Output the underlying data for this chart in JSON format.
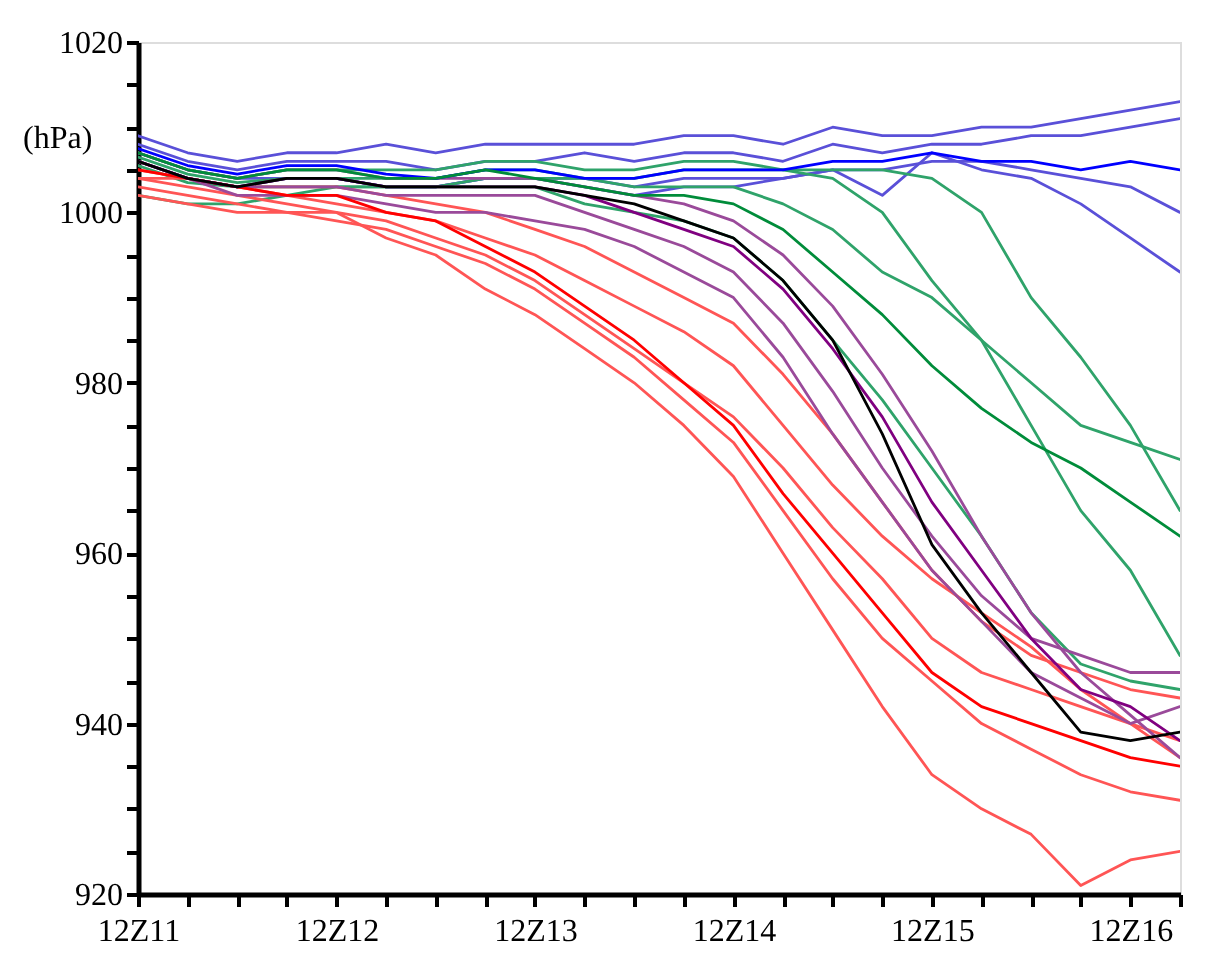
{
  "chart_data": {
    "type": "line",
    "ylabel": "(hPa)",
    "grid": false,
    "marker": "none",
    "line_style": "solid",
    "categories": [
      "12Z11",
      null,
      null,
      null,
      "12Z12",
      null,
      null,
      null,
      "12Z13",
      null,
      null,
      null,
      "12Z14",
      null,
      null,
      null,
      "12Z15",
      null,
      null,
      null,
      "12Z16",
      null
    ],
    "ylim": [
      920,
      1020
    ],
    "yticks": [
      920,
      {
        "value": 925,
        "label": null
      },
      {
        "value": 930,
        "label": null
      },
      {
        "value": 935,
        "label": null
      },
      940,
      {
        "value": 945,
        "label": null
      },
      {
        "value": 950,
        "label": null
      },
      {
        "value": 955,
        "label": null
      },
      960,
      {
        "value": 965,
        "label": null
      },
      {
        "value": 970,
        "label": null
      },
      {
        "value": 975,
        "label": null
      },
      980,
      {
        "value": 985,
        "label": null
      },
      {
        "value": 990,
        "label": null
      },
      {
        "value": 995,
        "label": null
      },
      1000,
      {
        "value": 1005,
        "label": null
      },
      {
        "value": 1010,
        "label": null
      },
      {
        "value": 1015,
        "label": null
      },
      1020
    ],
    "series": [
      {
        "color": "#5a50d8",
        "values": [
          1009,
          1007,
          1006,
          1007,
          1007,
          1008,
          1007,
          1008,
          1008,
          1008,
          1008,
          1009,
          1009,
          1008,
          1010,
          1009,
          1009,
          1010,
          1010,
          1011,
          1012,
          1013
        ]
      },
      {
        "color": "#5a50d8",
        "values": [
          1008,
          1006,
          1005,
          1006,
          1006,
          1006,
          1005,
          1006,
          1006,
          1007,
          1006,
          1007,
          1007,
          1006,
          1008,
          1007,
          1008,
          1008,
          1009,
          1009,
          1010,
          1011
        ]
      },
      {
        "color": "#5a50d8",
        "values": [
          1006,
          1004,
          1003,
          1004,
          1004,
          1003,
          1003,
          1004,
          1004,
          1003,
          1002,
          1003,
          1003,
          1004,
          1005,
          1002,
          1007,
          1005,
          1004,
          1001,
          997,
          993
        ]
      },
      {
        "color": "#5a50d8",
        "values": [
          1007,
          1005,
          1004,
          1004,
          1004,
          1003,
          1003,
          1004,
          1004,
          1004,
          1003,
          1004,
          1004,
          1004,
          1005,
          1005,
          1006,
          1006,
          1005,
          1004,
          1003,
          1000
        ]
      },
      {
        "color": "#2fa36a",
        "values": [
          1007,
          1005,
          1004,
          1005,
          1005,
          1005,
          1005,
          1006,
          1006,
          1005,
          1005,
          1006,
          1006,
          1005,
          1004,
          1000,
          992,
          985,
          975,
          965,
          958,
          948
        ]
      },
      {
        "color": "#2fa36a",
        "values": [
          1006.5,
          1004.5,
          1003.5,
          1004,
          1004,
          1004,
          1004,
          1005,
          1005,
          1004,
          1003,
          1003,
          1003,
          1001,
          998,
          993,
          990,
          985,
          980,
          975,
          973,
          971
        ]
      },
      {
        "color": "#2fa36a",
        "values": [
          1005.5,
          1003.5,
          1003,
          1003,
          1003,
          1003,
          1003,
          1003,
          1003,
          1001,
          1000,
          999,
          997,
          992,
          985,
          978,
          970,
          962,
          953,
          947,
          945,
          944
        ]
      },
      {
        "color": "#2fa36a",
        "values": [
          1002,
          1001,
          1001,
          1002,
          1003,
          1003,
          1003,
          1004,
          1004,
          1004,
          1004,
          1005,
          1005,
          1005,
          1005,
          1005,
          1004,
          1000,
          990,
          983,
          975,
          965
        ]
      },
      {
        "color": "#ff5555",
        "values": [
          1004,
          1003,
          1002,
          1001,
          1000,
          997,
          995,
          991,
          988,
          984,
          980,
          975,
          969,
          960,
          951,
          942,
          934,
          930,
          927,
          921,
          924,
          925
        ]
      },
      {
        "color": "#ff5555",
        "values": [
          1003,
          1002,
          1001,
          1000,
          1000,
          999,
          997,
          995,
          992,
          988,
          984,
          980,
          976,
          970,
          963,
          957,
          950,
          946,
          944,
          942,
          940,
          938
        ]
      },
      {
        "color": "#ff5555",
        "values": [
          1004,
          1004,
          1003,
          1002,
          1001,
          1000,
          999,
          997,
          995,
          992,
          989,
          986,
          982,
          975,
          968,
          962,
          957,
          953,
          949,
          944,
          940,
          936
        ]
      },
      {
        "color": "#ff5555",
        "values": [
          1002,
          1001,
          1000,
          1000,
          999,
          998,
          996,
          994,
          991,
          987,
          983,
          978,
          973,
          965,
          957,
          950,
          945,
          940,
          937,
          934,
          932,
          931
        ]
      },
      {
        "color": "#ff5555",
        "values": [
          1005,
          1004,
          1003,
          1003,
          1003,
          1002,
          1001,
          1000,
          998,
          996,
          993,
          990,
          987,
          981,
          974,
          966,
          958,
          952,
          948,
          946,
          944,
          943
        ]
      },
      {
        "color": "#9a4a9a",
        "values": [
          1006,
          1004,
          1003,
          1003,
          1003,
          1002,
          1002,
          1002,
          1002,
          1000,
          998,
          996,
          993,
          987,
          979,
          970,
          962,
          955,
          950,
          948,
          946,
          946
        ]
      },
      {
        "color": "#9a4a9a",
        "values": [
          1007,
          1005,
          1004,
          1005,
          1005,
          1004,
          1004,
          1004,
          1004,
          1003,
          1002,
          1001,
          999,
          995,
          989,
          981,
          972,
          962,
          953,
          946,
          941,
          936
        ]
      },
      {
        "color": "#9a4a9a",
        "values": [
          1006,
          1004,
          1002,
          1002,
          1002,
          1001,
          1000,
          1000,
          999,
          998,
          996,
          993,
          990,
          983,
          974,
          966,
          958,
          952,
          946,
          943,
          940,
          942
        ]
      },
      {
        "color": "#0000ff",
        "values": [
          1007.5,
          1005.5,
          1004.5,
          1005.5,
          1005.5,
          1004.5,
          1004,
          1005,
          1005,
          1004,
          1004,
          1005,
          1005,
          1005,
          1006,
          1006,
          1007,
          1006,
          1006,
          1005,
          1006,
          1005
        ]
      },
      {
        "color": "#008c3a",
        "values": [
          1007,
          1005,
          1004,
          1005,
          1005,
          1004,
          1004,
          1005,
          1004,
          1003,
          1002,
          1002,
          1001,
          998,
          993,
          988,
          982,
          977,
          973,
          970,
          966,
          962
        ]
      },
      {
        "color": "#ff0000",
        "values": [
          1005,
          1004,
          1003,
          1002,
          1002,
          1000,
          999,
          996,
          993,
          989,
          985,
          980,
          975,
          967,
          960,
          953,
          946,
          942,
          940,
          938,
          936,
          935
        ]
      },
      {
        "color": "#800080",
        "values": [
          1006,
          1004,
          1003,
          1004,
          1004,
          1003,
          1003,
          1003,
          1003,
          1002,
          1000,
          998,
          996,
          991,
          984,
          976,
          966,
          958,
          950,
          944,
          942,
          938
        ]
      },
      {
        "color": "#000000",
        "values": [
          1006,
          1004,
          1003,
          1004,
          1004,
          1003,
          1003,
          1003,
          1003,
          1002,
          1001,
          999,
          997,
          992,
          985,
          974,
          961,
          953,
          946,
          939,
          938,
          939
        ]
      }
    ]
  }
}
